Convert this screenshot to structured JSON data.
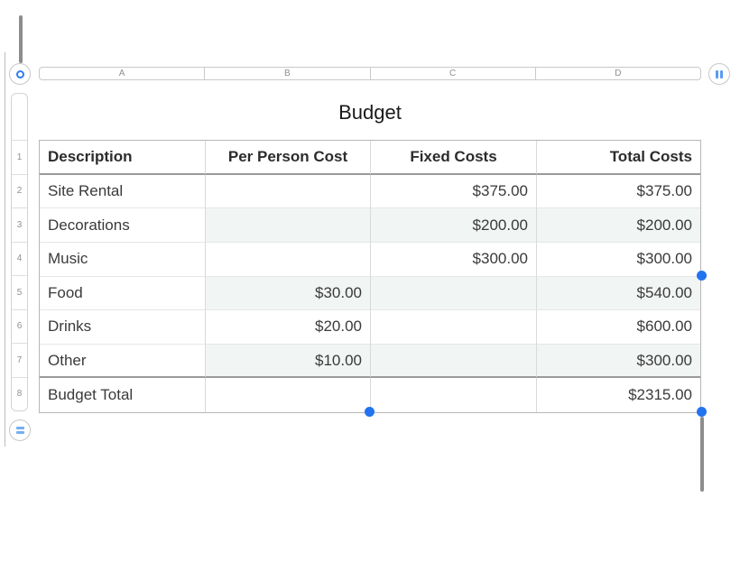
{
  "colors": {
    "accent_blue": "#2f7cf3",
    "handle_dot_blue": "#2273f0",
    "row_tint": "#f1f5f3"
  },
  "title": "Budget",
  "column_bar": {
    "letters": [
      "A",
      "B",
      "C",
      "D"
    ]
  },
  "row_strip": {
    "numbers": [
      "1",
      "2",
      "3",
      "4",
      "5",
      "6",
      "7",
      "8"
    ]
  },
  "table": {
    "headers": [
      "Description",
      "Per Person Cost",
      "Fixed Costs",
      "Total Costs"
    ],
    "rows": [
      {
        "cells": [
          "Site Rental",
          "",
          "$375.00",
          "$375.00"
        ]
      },
      {
        "cells": [
          "Decorations",
          "",
          "$200.00",
          "$200.00"
        ]
      },
      {
        "cells": [
          "Music",
          "",
          "$300.00",
          "$300.00"
        ]
      },
      {
        "cells": [
          "Food",
          "$30.00",
          "",
          "$540.00"
        ]
      },
      {
        "cells": [
          "Drinks",
          "$20.00",
          "",
          "$600.00"
        ]
      },
      {
        "cells": [
          "Other",
          "$10.00",
          "",
          "$300.00"
        ]
      },
      {
        "cells": [
          "Budget Total",
          "",
          "",
          "$2315.00"
        ]
      }
    ]
  }
}
